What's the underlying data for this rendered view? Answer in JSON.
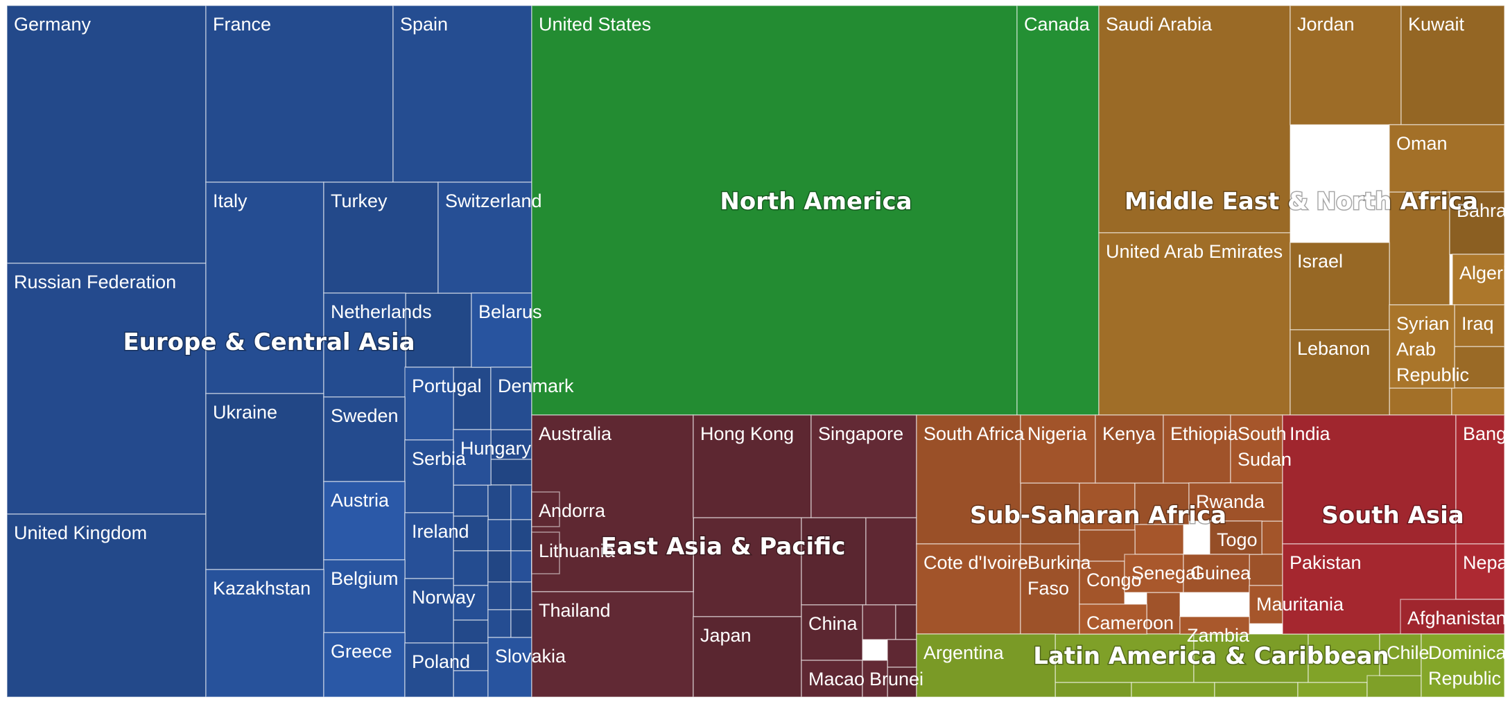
{
  "chart_data": {
    "type": "treemap",
    "regions": [
      {
        "name": "Europe & Central Asia",
        "color": "#23498a"
      },
      {
        "name": "North America",
        "color": "#238c32"
      },
      {
        "name": "Middle East & North Africa",
        "color": "#9a6a26"
      },
      {
        "name": "East Asia & Pacific",
        "color": "#5a2630"
      },
      {
        "name": "Sub-Saharan Africa",
        "color": "#9a5028"
      },
      {
        "name": "South Asia",
        "color": "#a0262e"
      },
      {
        "name": "Latin America & Caribbean",
        "color": "#7a9a26"
      }
    ],
    "countries": [
      "Germany",
      "Russian Federation",
      "United Kingdom",
      "France",
      "Spain",
      "Italy",
      "Turkey",
      "Switzerland",
      "Ukraine",
      "Netherlands",
      "Belarus",
      "Portugal",
      "Denmark",
      "Sweden",
      "Hungary",
      "Serbia",
      "Austria",
      "Ireland",
      "Belgium",
      "Norway",
      "Kazakhstan",
      "Greece",
      "Poland",
      "Slovakia",
      "United States",
      "Canada",
      "Saudi Arabia",
      "Jordan",
      "Kuwait",
      "Oman",
      "Bahrain",
      "United Arab Emirates",
      "Israel",
      "Algeria",
      "Iraq",
      "Syrian Arab Republic",
      "Lebanon",
      "Australia",
      "Hong Kong",
      "Singapore",
      "Andorra",
      "Lithuania",
      "Thailand",
      "Japan",
      "China",
      "Macao",
      "Brunei",
      "South Africa",
      "Nigeria",
      "Kenya",
      "Ethiopia",
      "South Sudan",
      "Rwanda",
      "Togo",
      "Cote d'Ivoire",
      "Burkina Faso",
      "Congo",
      "Senegal",
      "Guinea",
      "Mauritania",
      "Cameroon",
      "Zambia",
      "India",
      "Bangladesh",
      "Pakistan",
      "Nepal",
      "Afghanistan",
      "Argentina",
      "Chile",
      "Dominican Republic"
    ]
  }
}
